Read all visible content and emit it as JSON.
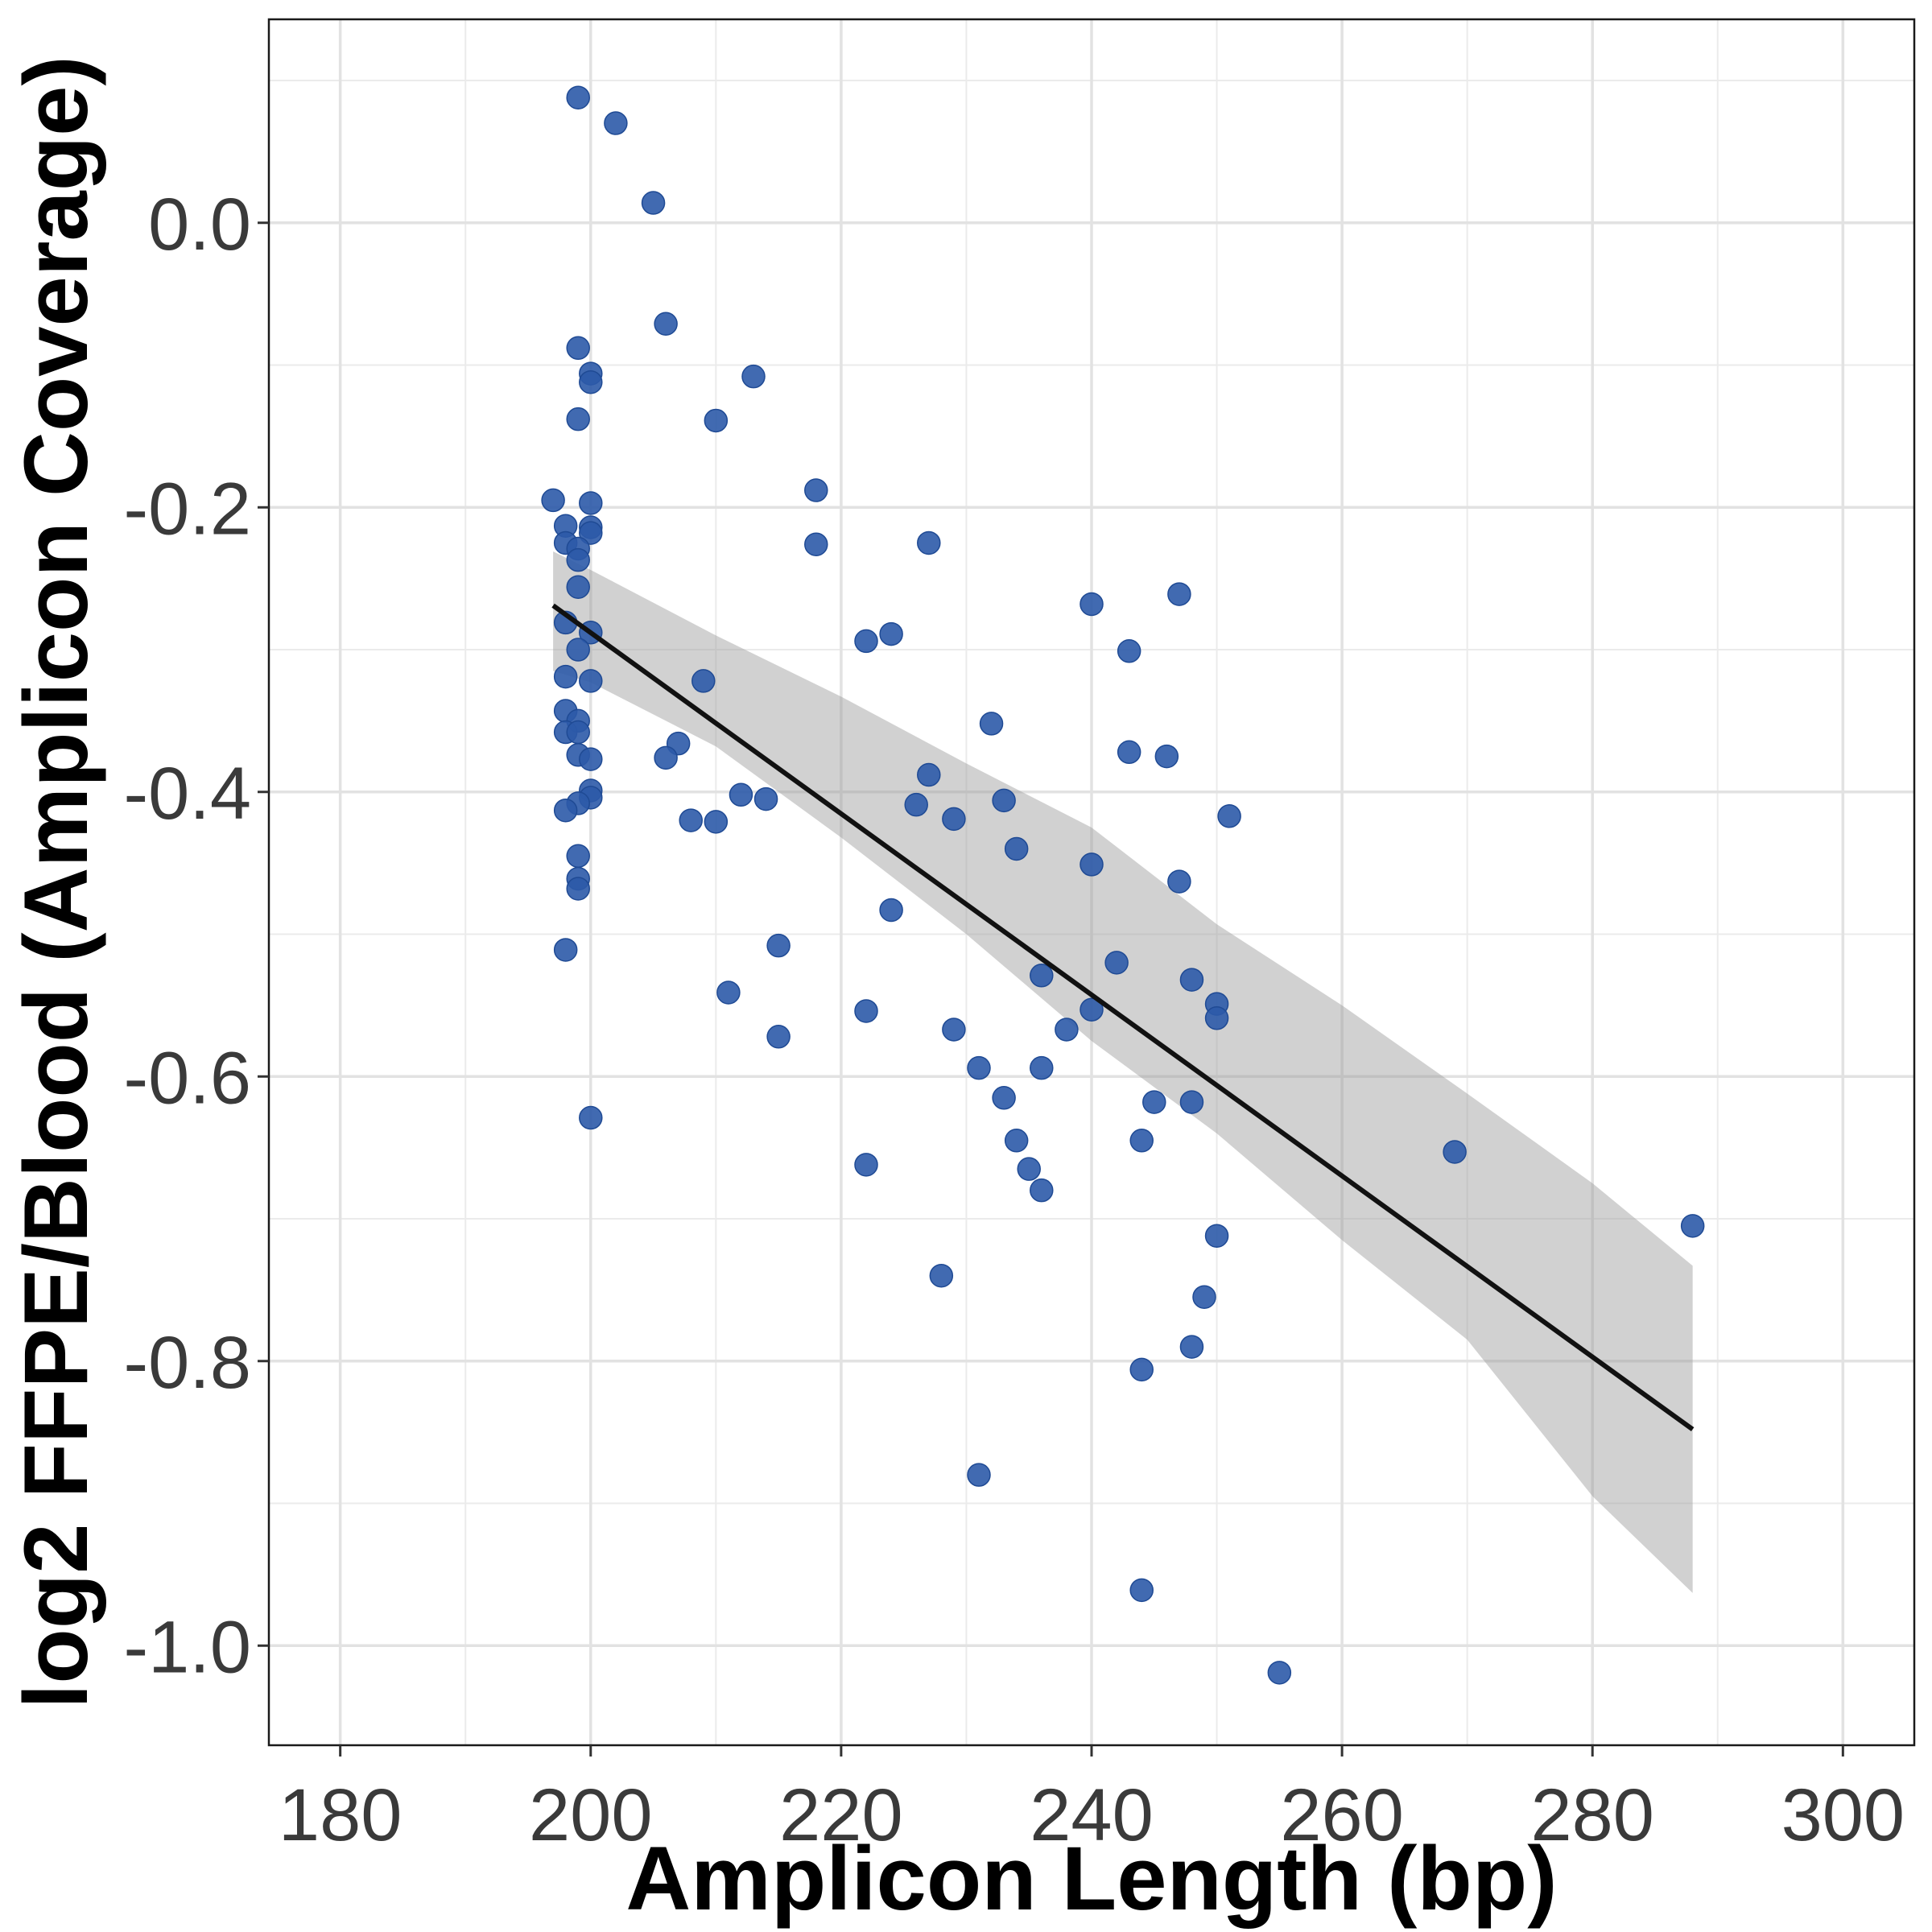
{
  "chart_data": {
    "type": "scatter",
    "title": "",
    "xlabel": "Amplicon Length (bp)",
    "ylabel": "log2 FFPE/Blood (Amplicon Coverage)",
    "xlim": [
      174.3,
      305.7
    ],
    "ylim": [
      -1.07,
      0.143
    ],
    "x_ticks": [
      180,
      200,
      220,
      240,
      260,
      280,
      300
    ],
    "x_tick_labels": [
      "180",
      "200",
      "220",
      "240",
      "260",
      "280",
      "300"
    ],
    "y_ticks": [
      0.0,
      -0.2,
      -0.4,
      -0.6,
      -0.8,
      -1.0
    ],
    "y_tick_labels": [
      "0.0",
      "-0.2",
      "-0.4",
      "-0.6",
      "-0.8",
      "-1.0"
    ],
    "grid": true,
    "colors": {
      "points": "#2c5aa8",
      "fit_line": "#111111",
      "band": "#999999"
    },
    "points": [
      [
        199,
        0.088
      ],
      [
        202,
        0.07
      ],
      [
        205,
        0.014
      ],
      [
        206,
        -0.071
      ],
      [
        199,
        -0.088
      ],
      [
        200,
        -0.106
      ],
      [
        200,
        -0.112
      ],
      [
        213,
        -0.108
      ],
      [
        199,
        -0.138
      ],
      [
        210,
        -0.139
      ],
      [
        218,
        -0.188
      ],
      [
        197,
        -0.195
      ],
      [
        200,
        -0.197
      ],
      [
        198,
        -0.213
      ],
      [
        200,
        -0.214
      ],
      [
        200,
        -0.218
      ],
      [
        198,
        -0.225
      ],
      [
        199,
        -0.229
      ],
      [
        218,
        -0.226
      ],
      [
        227,
        -0.225
      ],
      [
        199,
        -0.237
      ],
      [
        199,
        -0.256
      ],
      [
        247,
        -0.261
      ],
      [
        240,
        -0.268
      ],
      [
        198,
        -0.281
      ],
      [
        200,
        -0.288
      ],
      [
        222,
        -0.294
      ],
      [
        224,
        -0.289
      ],
      [
        199,
        -0.3
      ],
      [
        243,
        -0.301
      ],
      [
        198,
        -0.319
      ],
      [
        200,
        -0.322
      ],
      [
        209,
        -0.322
      ],
      [
        198,
        -0.343
      ],
      [
        199,
        -0.35
      ],
      [
        198,
        -0.358
      ],
      [
        199,
        -0.358
      ],
      [
        232,
        -0.352
      ],
      [
        207,
        -0.366
      ],
      [
        199,
        -0.374
      ],
      [
        206,
        -0.376
      ],
      [
        200,
        -0.377
      ],
      [
        243,
        -0.372
      ],
      [
        246,
        -0.375
      ],
      [
        227,
        -0.388
      ],
      [
        200,
        -0.399
      ],
      [
        200,
        -0.404
      ],
      [
        199,
        -0.408
      ],
      [
        212,
        -0.402
      ],
      [
        214,
        -0.405
      ],
      [
        233,
        -0.406
      ],
      [
        226,
        -0.409
      ],
      [
        198,
        -0.413
      ],
      [
        208,
        -0.42
      ],
      [
        210,
        -0.421
      ],
      [
        229,
        -0.419
      ],
      [
        251,
        -0.417
      ],
      [
        234,
        -0.44
      ],
      [
        199,
        -0.445
      ],
      [
        240,
        -0.451
      ],
      [
        199,
        -0.461
      ],
      [
        199,
        -0.468
      ],
      [
        247,
        -0.463
      ],
      [
        224,
        -0.483
      ],
      [
        198,
        -0.511
      ],
      [
        215,
        -0.508
      ],
      [
        242,
        -0.52
      ],
      [
        236,
        -0.529
      ],
      [
        248,
        -0.532
      ],
      [
        211,
        -0.541
      ],
      [
        250,
        -0.549
      ],
      [
        222,
        -0.554
      ],
      [
        240,
        -0.553
      ],
      [
        250,
        -0.559
      ],
      [
        229,
        -0.567
      ],
      [
        238,
        -0.567
      ],
      [
        215,
        -0.572
      ],
      [
        231,
        -0.594
      ],
      [
        236,
        -0.594
      ],
      [
        233,
        -0.615
      ],
      [
        245,
        -0.618
      ],
      [
        248,
        -0.618
      ],
      [
        200,
        -0.629
      ],
      [
        234,
        -0.645
      ],
      [
        244,
        -0.645
      ],
      [
        235,
        -0.665
      ],
      [
        222,
        -0.662
      ],
      [
        236,
        -0.68
      ],
      [
        269,
        -0.653
      ],
      [
        288,
        -0.705
      ],
      [
        250,
        -0.712
      ],
      [
        228,
        -0.74
      ],
      [
        249,
        -0.755
      ],
      [
        248,
        -0.79
      ],
      [
        244,
        -0.806
      ],
      [
        231,
        -0.88
      ],
      [
        244,
        -0.961
      ],
      [
        255,
        -1.019
      ]
    ],
    "fit_line": [
      [
        197,
        -0.269
      ],
      [
        288,
        -0.848
      ]
    ],
    "confidence_band": {
      "x": [
        197,
        200,
        210,
        220,
        230,
        240,
        250,
        260,
        270,
        280,
        288
      ],
      "upper": [
        -0.231,
        -0.244,
        -0.29,
        -0.333,
        -0.38,
        -0.425,
        -0.493,
        -0.55,
        -0.612,
        -0.675,
        -0.733
      ],
      "lower": [
        -0.315,
        -0.323,
        -0.368,
        -0.432,
        -0.5,
        -0.575,
        -0.64,
        -0.715,
        -0.785,
        -0.895,
        -0.963
      ]
    }
  }
}
